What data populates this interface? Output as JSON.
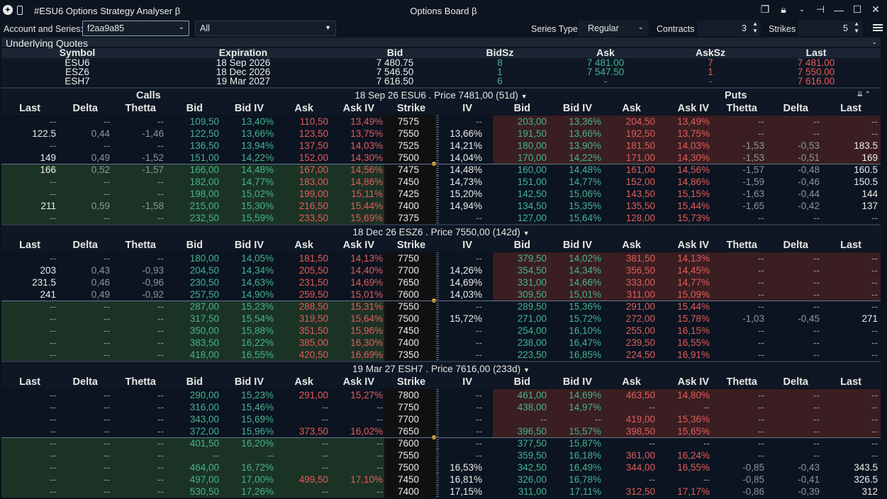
{
  "title_bar": {
    "app_title": "#ESU6  Options Strategy Analyser β",
    "board_title": "Options Board β"
  },
  "toolbar": {
    "account_label": "Account and Series:",
    "account_value": "f2aa9a85",
    "series_filter": "All",
    "series_type_label": "Series Type",
    "series_type_value": "Regular",
    "contracts_label": "Contracts",
    "contracts_value": "3",
    "strikes_label": "Strikes",
    "strikes_value": "5"
  },
  "underlying": {
    "title": "Underlying Quotes",
    "columns": [
      "Symbol",
      "Expiration",
      "Bid",
      "BidSz",
      "Ask",
      "AskSz",
      "Last"
    ],
    "rows": [
      {
        "symbol": "ESU6",
        "expiration": "18 Sep 2026",
        "bid": "7 480.75",
        "bidsz": "8",
        "ask": "7 481.00",
        "asksz": "7",
        "last": "7 481.00"
      },
      {
        "symbol": "ESZ6",
        "expiration": "18 Dec 2026",
        "bid": "7 546.50",
        "bidsz": "1",
        "ask": "7 547.50",
        "asksz": "1",
        "last": "7 550.00"
      },
      {
        "symbol": "ESH7",
        "expiration": "19 Mar 2027",
        "bid": "7 616.50",
        "bidsz": "6",
        "ask": "-",
        "asksz": "-",
        "last": "7 616.00"
      }
    ]
  },
  "board": {
    "calls_label": "Calls",
    "puts_label": "Puts",
    "columns": [
      "Last",
      "Delta",
      "Thetta",
      "Bid",
      "Bid IV",
      "Ask",
      "Ask IV",
      "Strike",
      "IV",
      "Bid",
      "Bid IV",
      "Ask",
      "Ask IV",
      "Thetta",
      "Delta",
      "Last"
    ],
    "sections": [
      {
        "title": "18 Sep 26 ESU6 . Price 7481,00 (51d)",
        "atm_index": 4,
        "rows": [
          [
            "--",
            "--",
            "--",
            "109,50",
            "13,40%",
            "110,50",
            "13,49%",
            "7575",
            "--",
            "203,00",
            "13,36%",
            "204,50",
            "13,49%",
            "--",
            "--",
            "--"
          ],
          [
            "122.5",
            "0,44",
            "-1,46",
            "122,50",
            "13,66%",
            "123,50",
            "13,75%",
            "7550",
            "13,66%",
            "191,50",
            "13,66%",
            "192,50",
            "13,75%",
            "--",
            "--",
            "--"
          ],
          [
            "--",
            "--",
            "--",
            "136,50",
            "13,94%",
            "137,50",
            "14,03%",
            "7525",
            "14,21%",
            "180,00",
            "13,90%",
            "181,50",
            "14,03%",
            "-1,53",
            "-0,53",
            "183.5"
          ],
          [
            "149",
            "0,49",
            "-1,52",
            "151,00",
            "14,22%",
            "152,00",
            "14,30%",
            "7500",
            "14,04%",
            "170,00",
            "14,22%",
            "171,00",
            "14,30%",
            "-1,53",
            "-0,51",
            "169"
          ],
          [
            "166",
            "0,52",
            "-1,57",
            "166,00",
            "14,48%",
            "167,00",
            "14,56%",
            "7475",
            "14,48%",
            "160,00",
            "14,48%",
            "161,00",
            "14,56%",
            "-1,57",
            "-0,48",
            "160.5"
          ],
          [
            "--",
            "--",
            "--",
            "182,00",
            "14,77%",
            "183,00",
            "14,86%",
            "7450",
            "14,73%",
            "151,00",
            "14,77%",
            "152,00",
            "14,86%",
            "-1,59",
            "-0,46",
            "150.5"
          ],
          [
            "--",
            "--",
            "--",
            "198,00",
            "15,02%",
            "199,00",
            "15,11%",
            "7425",
            "15,20%",
            "142,50",
            "15,06%",
            "143,50",
            "15,15%",
            "-1,63",
            "-0,44",
            "144"
          ],
          [
            "211",
            "0,59",
            "-1,58",
            "215,00",
            "15,30%",
            "216,50",
            "15,44%",
            "7400",
            "14,94%",
            "134,50",
            "15,35%",
            "135,50",
            "15,44%",
            "-1,65",
            "-0,42",
            "137"
          ],
          [
            "--",
            "--",
            "--",
            "232,50",
            "15,59%",
            "233,50",
            "15,69%",
            "7375",
            "--",
            "127,00",
            "15,64%",
            "128,00",
            "15,73%",
            "--",
            "--",
            "--"
          ]
        ]
      },
      {
        "title": "18 Dec 26 ESZ6 . Price 7550,00 (142d)",
        "atm_index": 4,
        "rows": [
          [
            "--",
            "--",
            "--",
            "180,00",
            "14,05%",
            "181,50",
            "14,13%",
            "7750",
            "--",
            "379,50",
            "14,02%",
            "381,50",
            "14,13%",
            "--",
            "--",
            "--"
          ],
          [
            "203",
            "0,43",
            "-0,93",
            "204,50",
            "14,34%",
            "205,50",
            "14,40%",
            "7700",
            "14,26%",
            "354,50",
            "14,34%",
            "356,50",
            "14,45%",
            "--",
            "--",
            "--"
          ],
          [
            "231.5",
            "0,46",
            "-0,96",
            "230,50",
            "14,63%",
            "231,50",
            "14,69%",
            "7650",
            "14,69%",
            "331,00",
            "14,66%",
            "333,00",
            "14,77%",
            "--",
            "--",
            "--"
          ],
          [
            "241",
            "0,49",
            "-0,92",
            "257,50",
            "14,90%",
            "259,50",
            "15,01%",
            "7600",
            "14,03%",
            "309,50",
            "15,01%",
            "311,00",
            "15,09%",
            "--",
            "--",
            "--"
          ],
          [
            "--",
            "--",
            "--",
            "287,00",
            "15,23%",
            "288,50",
            "15,31%",
            "7550",
            "--",
            "289,50",
            "15,36%",
            "291,00",
            "15,44%",
            "--",
            "--",
            "--"
          ],
          [
            "--",
            "--",
            "--",
            "317,50",
            "15,54%",
            "319,50",
            "15,64%",
            "7500",
            "15,72%",
            "271,00",
            "15,72%",
            "272,00",
            "15,78%",
            "-1,03",
            "-0,45",
            "271"
          ],
          [
            "--",
            "--",
            "--",
            "350,00",
            "15,88%",
            "351,50",
            "15,96%",
            "7450",
            "--",
            "254,00",
            "16,10%",
            "255,00",
            "16,15%",
            "--",
            "--",
            "--"
          ],
          [
            "--",
            "--",
            "--",
            "383,50",
            "16,22%",
            "385,00",
            "16,30%",
            "7400",
            "--",
            "238,00",
            "16,47%",
            "239,50",
            "16,55%",
            "--",
            "--",
            "--"
          ],
          [
            "--",
            "--",
            "--",
            "418,00",
            "16,55%",
            "420,50",
            "16,69%",
            "7350",
            "--",
            "223,50",
            "16,85%",
            "224,50",
            "16,91%",
            "--",
            "--",
            "--"
          ]
        ]
      },
      {
        "title": "19 Mar 27 ESH7 . Price 7616,00 (233d)",
        "atm_index": 4,
        "rows": [
          [
            "--",
            "--",
            "--",
            "290,00",
            "15,23%",
            "291,00",
            "15,27%",
            "7800",
            "--",
            "461,00",
            "14,69%",
            "463,50",
            "14,80%",
            "--",
            "--",
            "--"
          ],
          [
            "--",
            "--",
            "--",
            "316,00",
            "15,46%",
            "--",
            "--",
            "7750",
            "--",
            "438,00",
            "14,97%",
            "--",
            "--",
            "--",
            "--",
            "--"
          ],
          [
            "--",
            "--",
            "--",
            "343,00",
            "15,69%",
            "--",
            "--",
            "7700",
            "--",
            "--",
            "--",
            "419,00",
            "15,36%",
            "--",
            "--",
            "--"
          ],
          [
            "--",
            "--",
            "--",
            "372,00",
            "15,96%",
            "373,50",
            "16,02%",
            "7650",
            "--",
            "396,50",
            "15,57%",
            "398,50",
            "15,65%",
            "--",
            "--",
            "--"
          ],
          [
            "--",
            "--",
            "--",
            "401,50",
            "16,20%",
            "--",
            "--",
            "7600",
            "--",
            "377,50",
            "15,87%",
            "--",
            "--",
            "--",
            "--",
            "--"
          ],
          [
            "--",
            "--",
            "--",
            "--",
            "--",
            "--",
            "--",
            "7550",
            "--",
            "359,50",
            "16,18%",
            "361,00",
            "16,24%",
            "--",
            "--",
            "--"
          ],
          [
            "--",
            "--",
            "--",
            "464,00",
            "16,72%",
            "--",
            "--",
            "7500",
            "16,53%",
            "342,50",
            "16,49%",
            "344,00",
            "16,55%",
            "-0,85",
            "-0,43",
            "343.5"
          ],
          [
            "--",
            "--",
            "--",
            "497,00",
            "17,00%",
            "499,50",
            "17,10%",
            "7450",
            "16,81%",
            "326,00",
            "16,78%",
            "--",
            "--",
            "-0,85",
            "-0,41",
            "326.5"
          ],
          [
            "--",
            "--",
            "--",
            "530,50",
            "17,26%",
            "--",
            "--",
            "7400",
            "17,15%",
            "311,00",
            "17,11%",
            "312,50",
            "17,17%",
            "-0,86",
            "-0,39",
            "312"
          ]
        ]
      }
    ]
  },
  "colors": {
    "call_itm_bg": "#1b3325",
    "put_itm_bg": "#3a1e21",
    "bid": "#46b391",
    "ask": "#e45c5c",
    "atm_dot": "#e7a424"
  },
  "icons": [
    "app-logo-icon",
    "device-icon",
    "restore-icon",
    "lock-icon",
    "chevron-down-icon",
    "pin-icon",
    "minimize-icon",
    "maximize-icon",
    "close-icon",
    "menu-icon"
  ]
}
